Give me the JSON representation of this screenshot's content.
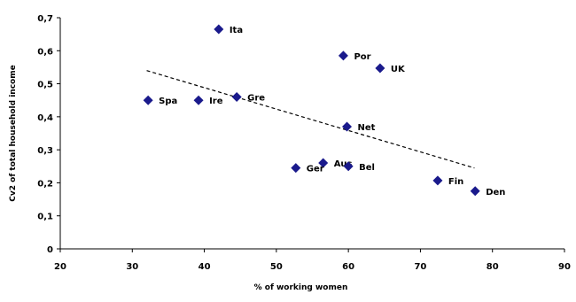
{
  "chart_data": {
    "type": "scatter",
    "title": "",
    "xlabel": "% of working women",
    "ylabel": "Cv2 of total household income",
    "xlim": [
      20,
      90
    ],
    "ylim": [
      0,
      0.7
    ],
    "xticks": [
      20,
      30,
      40,
      50,
      60,
      70,
      80,
      90
    ],
    "yticks": [
      0,
      0.1,
      0.2,
      0.3,
      0.4,
      0.5,
      0.6,
      0.7
    ],
    "xtick_labels": [
      "20",
      "30",
      "40",
      "50",
      "60",
      "70",
      "80",
      "90"
    ],
    "ytick_labels": [
      "0",
      "0,1",
      "0,2",
      "0,3",
      "0,4",
      "0,5",
      "0,6",
      "0,7"
    ],
    "grid": false,
    "legend": "none",
    "marker_color": "#1a1a8c",
    "trendline": {
      "style": "dashed",
      "color": "#000000",
      "points": [
        [
          32,
          0.54
        ],
        [
          77.5,
          0.245
        ]
      ]
    },
    "points": [
      {
        "label": "Ita",
        "x": 42,
        "y": 0.665
      },
      {
        "label": "Por",
        "x": 59.3,
        "y": 0.585
      },
      {
        "label": "UK",
        "x": 64.4,
        "y": 0.547
      },
      {
        "label": "Gre",
        "x": 44.5,
        "y": 0.46
      },
      {
        "label": "Spa",
        "x": 32.2,
        "y": 0.45
      },
      {
        "label": "Ire",
        "x": 39.2,
        "y": 0.45
      },
      {
        "label": "Net",
        "x": 59.8,
        "y": 0.37
      },
      {
        "label": "Aus",
        "x": 56.5,
        "y": 0.26
      },
      {
        "label": "Ger",
        "x": 52.7,
        "y": 0.245
      },
      {
        "label": "Bel",
        "x": 60,
        "y": 0.25
      },
      {
        "label": "Fin",
        "x": 72.4,
        "y": 0.207
      },
      {
        "label": "Den",
        "x": 77.6,
        "y": 0.175
      }
    ]
  }
}
